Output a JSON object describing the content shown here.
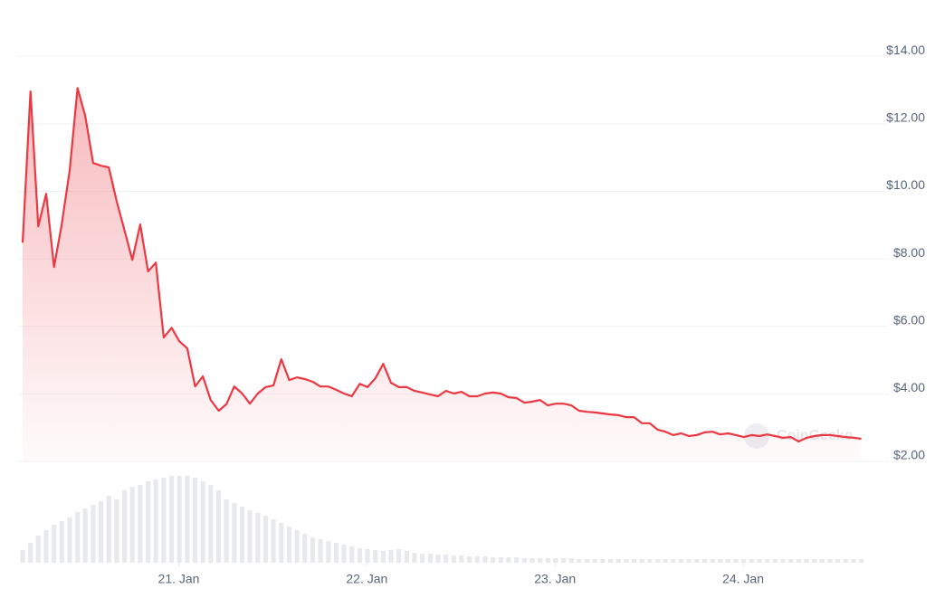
{
  "chart_data": {
    "type": "line",
    "x": [
      20.17,
      20.212,
      20.253,
      20.295,
      20.337,
      20.378,
      20.42,
      20.462,
      20.503,
      20.545,
      20.587,
      20.628,
      20.67,
      20.712,
      20.753,
      20.795,
      20.837,
      20.878,
      20.92,
      20.962,
      21.003,
      21.045,
      21.087,
      21.128,
      21.17,
      21.212,
      21.253,
      21.295,
      21.337,
      21.378,
      21.42,
      21.462,
      21.503,
      21.545,
      21.587,
      21.628,
      21.67,
      21.712,
      21.753,
      21.795,
      21.837,
      21.878,
      21.92,
      21.962,
      22.003,
      22.045,
      22.087,
      22.128,
      22.17,
      22.212,
      22.253,
      22.295,
      22.337,
      22.378,
      22.42,
      22.462,
      22.503,
      22.545,
      22.587,
      22.628,
      22.67,
      22.712,
      22.753,
      22.795,
      22.837,
      22.878,
      22.92,
      22.962,
      23.003,
      23.045,
      23.087,
      23.128,
      23.17,
      23.212,
      23.253,
      23.295,
      23.337,
      23.378,
      23.42,
      23.462,
      23.503,
      23.545,
      23.587,
      23.628,
      23.67,
      23.712,
      23.753,
      23.795,
      23.837,
      23.878,
      23.92,
      23.962,
      24.003,
      24.045,
      24.087,
      24.128,
      24.17,
      24.212,
      24.253,
      24.295,
      24.337,
      24.378,
      24.42,
      24.462,
      24.503,
      24.545,
      24.587,
      24.628
    ],
    "series": [
      {
        "color": "#ea3943",
        "values": [
          8.48,
          12.96,
          8.96,
          9.93,
          7.76,
          9.02,
          10.63,
          13.06,
          12.23,
          10.84,
          10.76,
          10.71,
          9.71,
          8.83,
          7.97,
          9.02,
          7.63,
          7.89,
          5.67,
          5.96,
          5.56,
          5.35,
          4.22,
          4.52,
          3.82,
          3.5,
          3.69,
          4.22,
          4.01,
          3.71,
          4.01,
          4.2,
          4.25,
          5.03,
          4.41,
          4.49,
          4.44,
          4.36,
          4.22,
          4.22,
          4.12,
          4.01,
          3.93,
          4.3,
          4.2,
          4.46,
          4.89,
          4.33,
          4.2,
          4.2,
          4.09,
          4.04,
          3.98,
          3.93,
          4.09,
          4.01,
          4.06,
          3.93,
          3.93,
          4.01,
          4.04,
          4.01,
          3.9,
          3.88,
          3.74,
          3.77,
          3.82,
          3.66,
          3.71,
          3.71,
          3.66,
          3.5,
          3.47,
          3.45,
          3.42,
          3.39,
          3.37,
          3.31,
          3.31,
          3.13,
          3.13,
          2.94,
          2.88,
          2.78,
          2.83,
          2.75,
          2.78,
          2.86,
          2.88,
          2.8,
          2.83,
          2.78,
          2.72,
          2.78,
          2.75,
          2.8,
          2.75,
          2.7,
          2.72,
          2.59,
          2.7,
          2.75,
          2.78,
          2.78,
          2.75,
          2.72,
          2.7,
          2.67
        ]
      }
    ],
    "volume": [
      14,
      22,
      30,
      36,
      42,
      46,
      50,
      56,
      60,
      64,
      68,
      74,
      70,
      80,
      84,
      86,
      90,
      92,
      94,
      96,
      96,
      96,
      94,
      90,
      86,
      80,
      70,
      66,
      62,
      58,
      55,
      52,
      48,
      44,
      40,
      36,
      32,
      28,
      26,
      24,
      22,
      20,
      18,
      16,
      15,
      14,
      13,
      14,
      15,
      13,
      11,
      10,
      10,
      9,
      9,
      8,
      8,
      7,
      7,
      7,
      6,
      6,
      6,
      6,
      5,
      5,
      5,
      5,
      5,
      5,
      5,
      4,
      4,
      4,
      4,
      4,
      4,
      4,
      4,
      4,
      4,
      4,
      4,
      4,
      4,
      4,
      4,
      4,
      4,
      4,
      4,
      4,
      4,
      4,
      4,
      4,
      4,
      4,
      4,
      4,
      4,
      4,
      4,
      4,
      4,
      4,
      4,
      4
    ],
    "volume_color": "#e8e9ec",
    "volume_ylim": [
      0,
      100
    ],
    "xlim": [
      20.17,
      24.63
    ],
    "xticks": [
      {
        "value": 21,
        "label": "21. Jan"
      },
      {
        "value": 22,
        "label": "22. Jan"
      },
      {
        "value": 23,
        "label": "23. Jan"
      },
      {
        "value": 24,
        "label": "24. Jan"
      }
    ],
    "ylim": [
      2,
      15
    ],
    "yticks": [
      {
        "value": 2,
        "label": "$2.00"
      },
      {
        "value": 4,
        "label": "$4.00"
      },
      {
        "value": 6,
        "label": "$6.00"
      },
      {
        "value": 8,
        "label": "$8.00"
      },
      {
        "value": 10,
        "label": "$10.00"
      },
      {
        "value": 12,
        "label": "$12.00"
      },
      {
        "value": 14,
        "label": "$14.00"
      }
    ],
    "grid": true,
    "watermark": "CoinGecko"
  }
}
